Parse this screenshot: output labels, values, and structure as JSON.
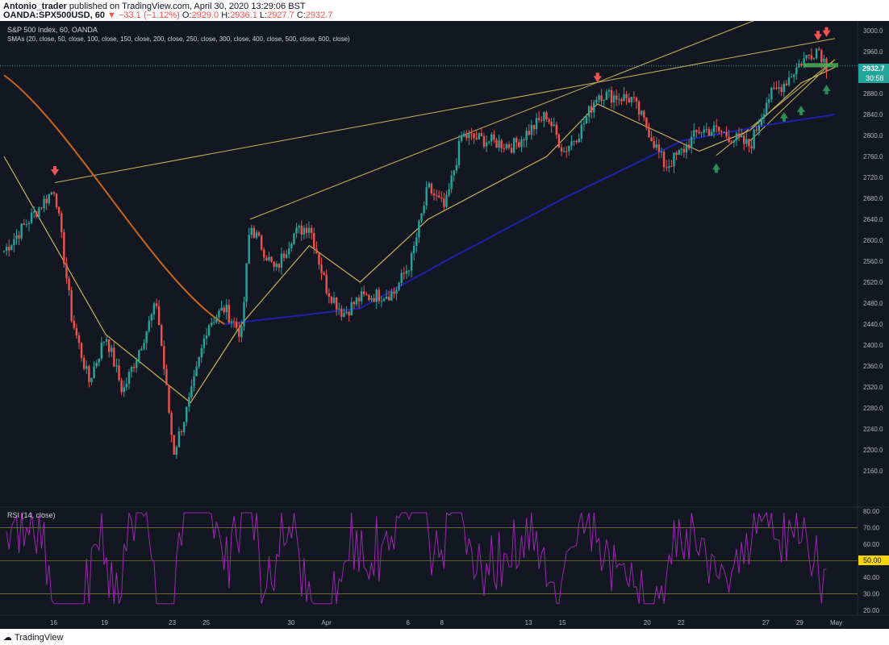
{
  "header": {
    "author": "Antonio_trader",
    "published_text": "published on TradingView.com, April 30, 2020 13:29:06 BST",
    "symbol": "OANDA:SPX500USD, 60",
    "change": "▼ −33.1 (−1.12%)",
    "o_label": "O:",
    "o_value": "2929.0",
    "h_label": "H:",
    "h_value": "2936.1",
    "l_label": "L:",
    "l_value": "2927.7",
    "c_label": "C:",
    "c_value": "2932.7"
  },
  "legend": {
    "title": "S&P 500 Index, 60, OANDA",
    "smas": "SMAs (20, close, 50, close, 100, close, 150, close, 200, close, 250, close, 300, close, 400, close, 500, close, 600, close)",
    "rsi": "RSI (14, close)"
  },
  "price_axis": {
    "ticks": [
      "3000.0",
      "2960.0",
      "2920.0",
      "2880.0",
      "2840.0",
      "2800.0",
      "2760.0",
      "2720.0",
      "2680.0",
      "2640.0",
      "2600.0",
      "2560.0",
      "2520.0",
      "2480.0",
      "2440.0",
      "2400.0",
      "2360.0",
      "2320.0",
      "2280.0",
      "2240.0",
      "2200.0",
      "2160.0"
    ],
    "last_price": "2932.7",
    "countdown": "30:58"
  },
  "rsi_axis": {
    "ticks": [
      "80.00",
      "70.00",
      "60.00",
      "40.00",
      "30.00",
      "20.00"
    ],
    "marker": "50.00"
  },
  "time_axis": [
    "16",
    "19",
    "23",
    "25",
    "30",
    "Apr",
    "6",
    "8",
    "13",
    "15",
    "20",
    "22",
    "27",
    "29",
    "May"
  ],
  "footer": {
    "brand": "TradingView"
  },
  "colors": {
    "background": "#131722",
    "up": "#26a69a",
    "down": "#ef5350",
    "sma_fast": "#c9b458",
    "sma_slow": "#1e22aa",
    "sma_orange": "#c8661c",
    "rsi": "#9c27b0",
    "trendline": "#c9b458",
    "arrow_up": "#2e8b57",
    "arrow_down": "#ef5350",
    "zone": "#4caf50"
  },
  "chart_data": {
    "type": "candlestick",
    "title": "S&P 500 Index, 60, OANDA",
    "ylim": [
      2150,
      3010
    ],
    "x_range": [
      "Mar 13",
      "May 1"
    ],
    "path_points": [
      [
        "Mar 13",
        2580
      ],
      [
        "Mar 16",
        2700
      ],
      [
        "Mar 17",
        2450
      ],
      [
        "Mar 18",
        2330
      ],
      [
        "Mar 19",
        2420
      ],
      [
        "Mar 20",
        2310
      ],
      [
        "Mar 22",
        2480
      ],
      [
        "Mar 23",
        2195
      ],
      [
        "Mar 24",
        2300
      ],
      [
        "Mar 25",
        2440
      ],
      [
        "Mar 26",
        2470
      ],
      [
        "Mar 27",
        2420
      ],
      [
        "Mar 27b",
        2630
      ],
      [
        "Mar 29",
        2540
      ],
      [
        "Mar 30",
        2610
      ],
      [
        "Mar 31",
        2630
      ],
      [
        "Apr 1",
        2510
      ],
      [
        "Apr 2",
        2460
      ],
      [
        "Apr 3",
        2490
      ],
      [
        "Apr 5",
        2500
      ],
      [
        "Apr 6",
        2560
      ],
      [
        "Apr 7",
        2700
      ],
      [
        "Apr 8",
        2660
      ],
      [
        "Apr 9",
        2800
      ],
      [
        "Apr 12",
        2780
      ],
      [
        "Apr 14",
        2840
      ],
      [
        "Apr 15",
        2770
      ],
      [
        "Apr 16",
        2810
      ],
      [
        "Apr 17",
        2880
      ],
      [
        "Apr 19",
        2870
      ],
      [
        "Apr 20",
        2810
      ],
      [
        "Apr 21",
        2740
      ],
      [
        "Apr 22",
        2770
      ],
      [
        "Apr 23",
        2810
      ],
      [
        "Apr 24",
        2810
      ],
      [
        "Apr 26",
        2780
      ],
      [
        "Apr 27",
        2870
      ],
      [
        "Apr 28",
        2900
      ],
      [
        "Apr 29",
        2940
      ],
      [
        "Apr 30",
        2968
      ],
      [
        "Apr 30b",
        2932.7
      ]
    ],
    "smas": {
      "orange_start": 2915,
      "orange_end": 2440,
      "blue_points": [
        [
          "Mar 26",
          2440
        ],
        [
          "Apr 3",
          2470
        ],
        [
          "Apr 8",
          2560
        ],
        [
          "Apr 15",
          2680
        ],
        [
          "Apr 22",
          2790
        ],
        [
          "Apr 27",
          2820
        ],
        [
          "May 1",
          2840
        ]
      ],
      "yellow_points": [
        [
          "Mar 13",
          2760
        ],
        [
          "Mar 19",
          2420
        ],
        [
          "Mar 24",
          2290
        ],
        [
          "Mar 27",
          2440
        ],
        [
          "Mar 31",
          2590
        ],
        [
          "Apr 3",
          2520
        ],
        [
          "Apr 7",
          2640
        ],
        [
          "Apr 14",
          2760
        ],
        [
          "Apr 17",
          2860
        ],
        [
          "Apr 21",
          2800
        ],
        [
          "Apr 23",
          2770
        ],
        [
          "Apr 26",
          2810
        ],
        [
          "Apr 29",
          2900
        ],
        [
          "May 1",
          2930
        ]
      ]
    },
    "rsi": {
      "range": [
        20,
        80
      ],
      "levels": [
        30,
        50,
        70
      ],
      "last": 45
    },
    "annotations": {
      "down_arrows": [
        "Mar 16",
        "Apr 17",
        "Apr 30",
        "Apr 30"
      ],
      "up_arrows": [
        "Apr 24",
        "Apr 28",
        "Apr 29",
        "Apr 30"
      ],
      "resistance_zone": [
        2930,
        2938
      ]
    }
  }
}
